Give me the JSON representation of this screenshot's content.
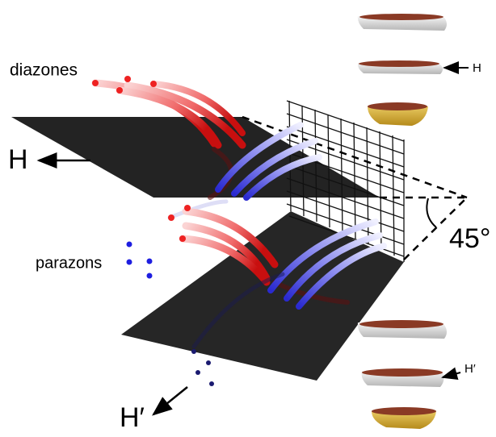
{
  "labels": {
    "diazones": "diazones",
    "h_field": "H",
    "parazons": "parazons",
    "angle": "45°",
    "h_prime_field": "H′",
    "h_top": "H",
    "h_prime_right": "H′"
  }
}
